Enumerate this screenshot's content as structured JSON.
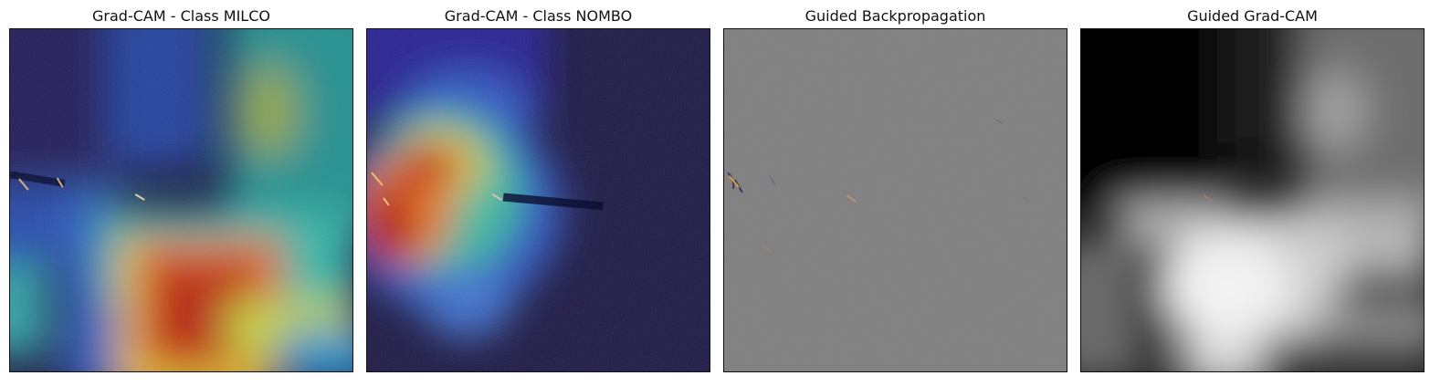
{
  "panels": [
    {
      "title": "Grad-CAM - Class MILCO"
    },
    {
      "title": "Grad-CAM - Class NOMBO"
    },
    {
      "title": "Guided Backpropagation"
    },
    {
      "title": "Guided Grad-CAM"
    }
  ]
}
